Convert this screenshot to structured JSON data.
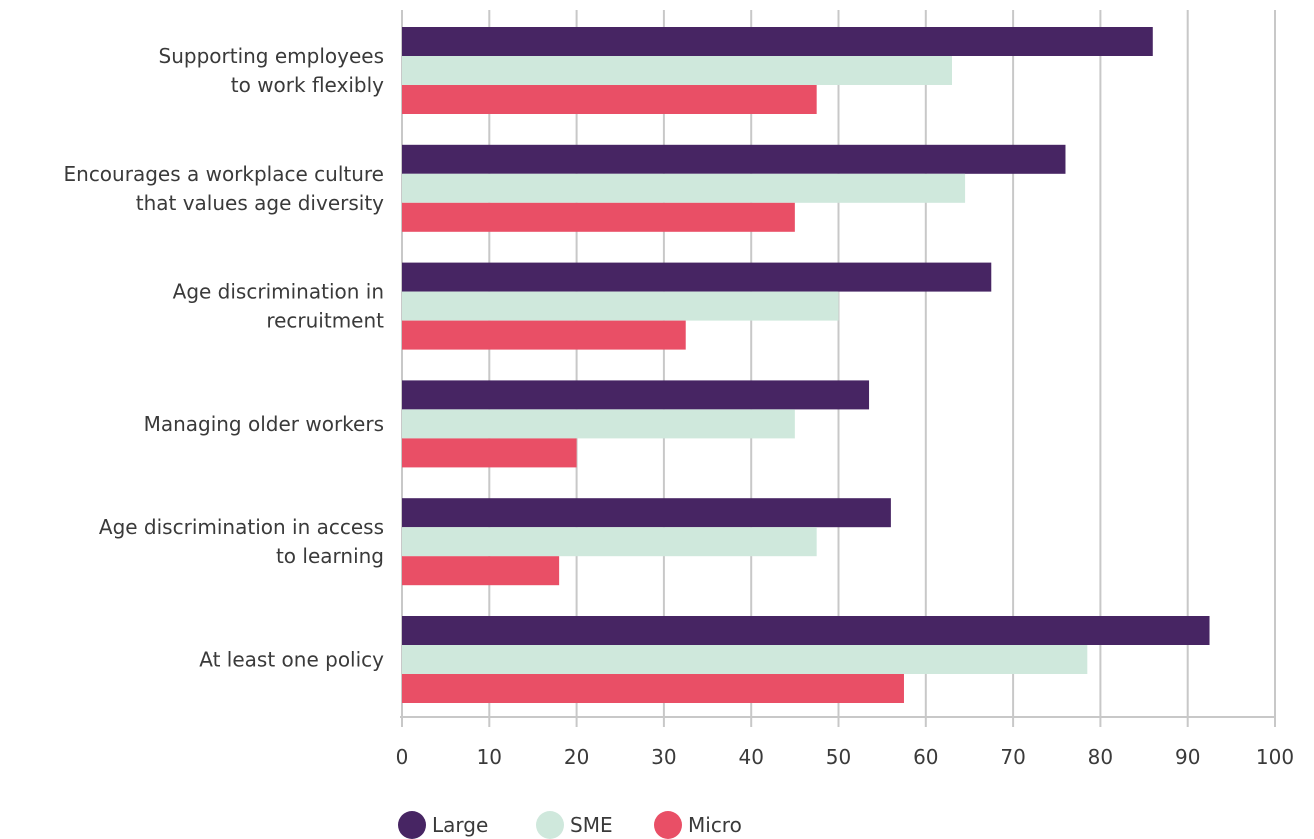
{
  "chart_data": {
    "type": "bar",
    "orientation": "horizontal",
    "title": "",
    "xlabel": "",
    "ylabel": "",
    "xlim": [
      0,
      100
    ],
    "xticks": [
      0,
      10,
      20,
      30,
      40,
      50,
      60,
      70,
      80,
      90,
      100
    ],
    "grid": "vertical",
    "legend_position": "bottom",
    "categories": [
      [
        "Supporting employees",
        "to work flexibly"
      ],
      [
        "Encourages a workplace culture",
        "that values age diversity"
      ],
      [
        "Age discrimination in",
        "recruitment"
      ],
      [
        "Managing older workers"
      ],
      [
        "Age discrimination in access",
        "to learning"
      ],
      [
        "At least one policy"
      ]
    ],
    "series": [
      {
        "name": "Large",
        "color": "#472563",
        "values": [
          86,
          76,
          67.5,
          53.5,
          56,
          92.5
        ]
      },
      {
        "name": "SME",
        "color": "#cfe8dc",
        "values": [
          63,
          64.5,
          50,
          45,
          47.5,
          78.5
        ]
      },
      {
        "name": "Micro",
        "color": "#e94f66",
        "values": [
          47.5,
          45,
          32.5,
          20,
          18,
          57.5
        ]
      }
    ]
  }
}
